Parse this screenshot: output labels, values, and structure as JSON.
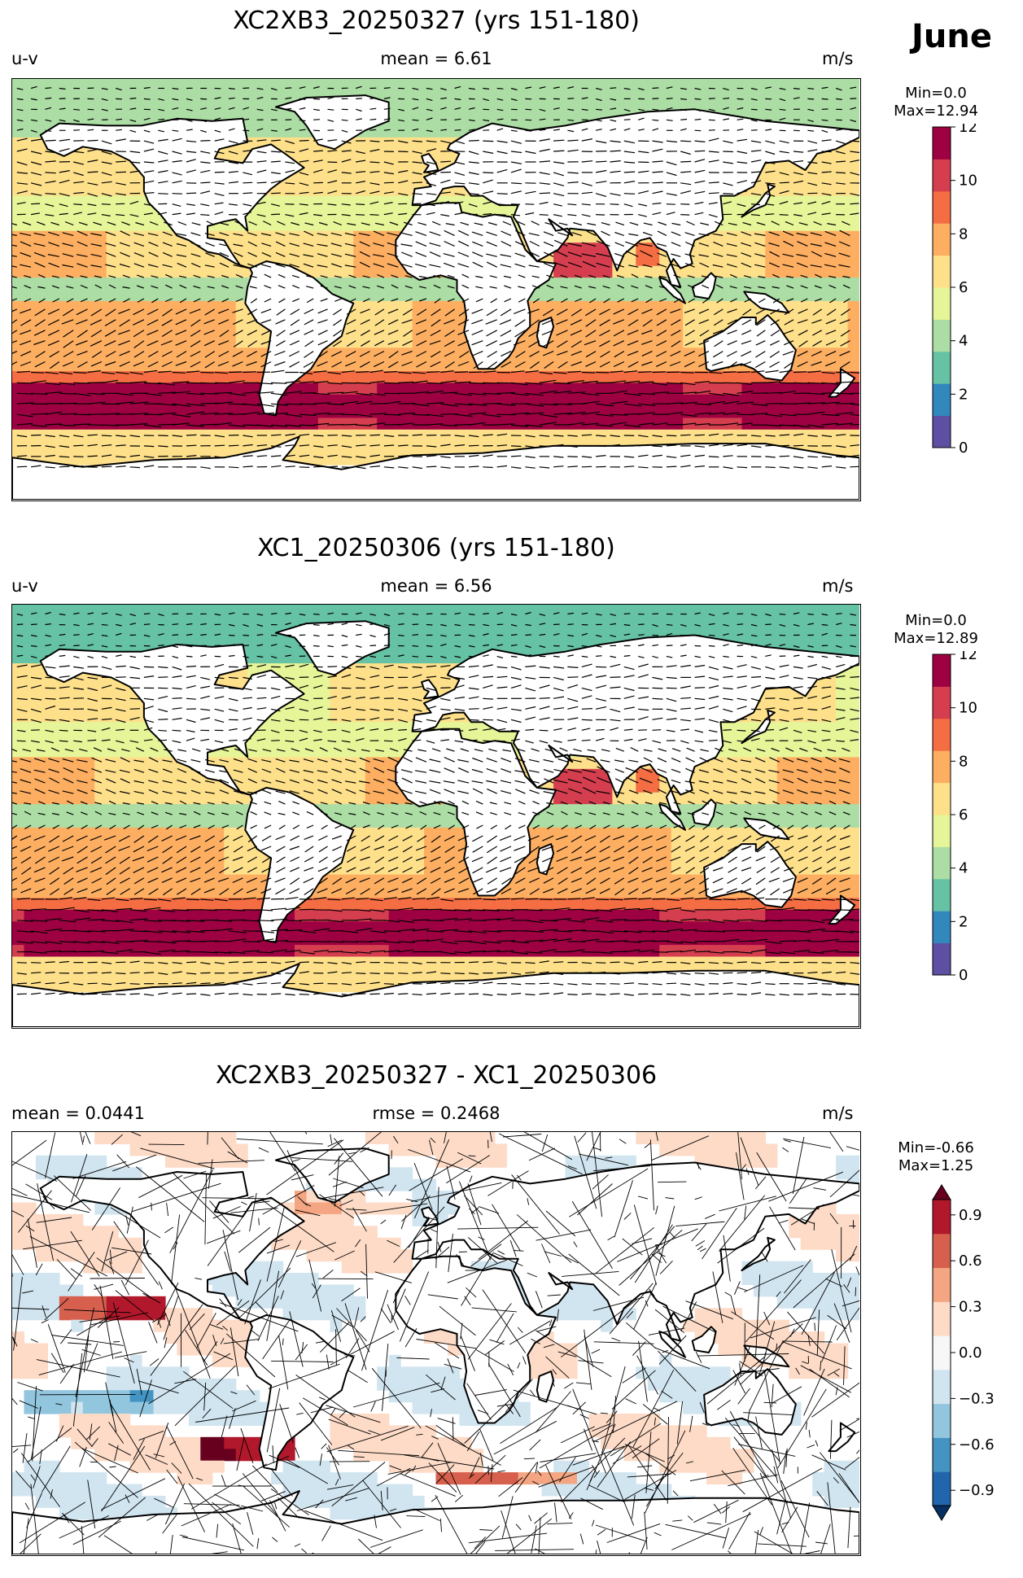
{
  "month": "June",
  "panels": [
    {
      "title": "XC2XB3_20250327 (yrs 151-180)",
      "left": "u-v",
      "center": "mean = 6.61",
      "right": "m/s",
      "min_label": "Min=0.0",
      "max_label": "Max=12.94",
      "colorbar": {
        "ticks": [
          "0",
          "2",
          "4",
          "6",
          "8",
          "10",
          "12"
        ]
      }
    },
    {
      "title": "XC1_20250306 (yrs 151-180)",
      "left": "u-v",
      "center": "mean = 6.56",
      "right": "m/s",
      "min_label": "Min=0.0",
      "max_label": "Max=12.89",
      "colorbar": {
        "ticks": [
          "0",
          "2",
          "4",
          "6",
          "8",
          "10",
          "12"
        ]
      }
    },
    {
      "title": "XC2XB3_20250327 - XC1_20250306",
      "left": "mean = 0.0441",
      "center": "rmse = 0.2468",
      "right": "m/s",
      "min_label": "Min=-0.66",
      "max_label": "Max=1.25",
      "colorbar": {
        "ticks": [
          "−0.9",
          "−0.6",
          "−0.3",
          "0.0",
          "0.3",
          "0.6",
          "0.9"
        ]
      }
    }
  ],
  "chart_data": [
    {
      "type": "heatmap",
      "title": "XC2XB3_20250327 (yrs 151-180)",
      "variable": "u-v",
      "units": "m/s",
      "mean": 6.61,
      "min": 0.0,
      "max": 12.94,
      "color_range": [
        0,
        12
      ],
      "colormap": "RdYlBu_r",
      "levels": [
        0,
        1,
        2,
        3,
        4,
        5,
        6,
        7,
        8,
        9,
        10,
        11,
        12
      ],
      "colors": [
        "#5e4fa2",
        "#3288bd",
        "#66c2a5",
        "#abdda4",
        "#e6f598",
        "#fee08b",
        "#fdae61",
        "#f46d43",
        "#d53e4f",
        "#9e0142"
      ]
    },
    {
      "type": "heatmap",
      "title": "XC1_20250306 (yrs 151-180)",
      "variable": "u-v",
      "units": "m/s",
      "mean": 6.56,
      "min": 0.0,
      "max": 12.89,
      "color_range": [
        0,
        12
      ],
      "colormap": "RdYlBu_r",
      "levels": [
        0,
        1,
        2,
        3,
        4,
        5,
        6,
        7,
        8,
        9,
        10,
        11,
        12
      ],
      "colors": [
        "#5e4fa2",
        "#3288bd",
        "#66c2a5",
        "#abdda4",
        "#e6f598",
        "#fee08b",
        "#fdae61",
        "#f46d43",
        "#d53e4f",
        "#9e0142"
      ]
    },
    {
      "type": "heatmap",
      "title": "XC2XB3_20250327 - XC1_20250306",
      "units": "m/s",
      "mean": 0.0441,
      "rmse": 0.2468,
      "min": -0.66,
      "max": 1.25,
      "color_range": [
        -1.0,
        1.0
      ],
      "colormap": "RdBu_r",
      "extend": "both",
      "levels": [
        -1.0,
        -0.9,
        -0.8,
        -0.7,
        -0.6,
        -0.5,
        -0.4,
        -0.3,
        -0.2,
        -0.1,
        0.0,
        0.1,
        0.2,
        0.3,
        0.4,
        0.5,
        0.6,
        0.7,
        0.8,
        0.9,
        1.0
      ],
      "colors": [
        "#053061",
        "#2166ac",
        "#4393c3",
        "#92c5de",
        "#d1e5f0",
        "#f7f7f7",
        "#fddbc7",
        "#f4a582",
        "#d6604d",
        "#b2182b",
        "#67001f"
      ]
    }
  ]
}
